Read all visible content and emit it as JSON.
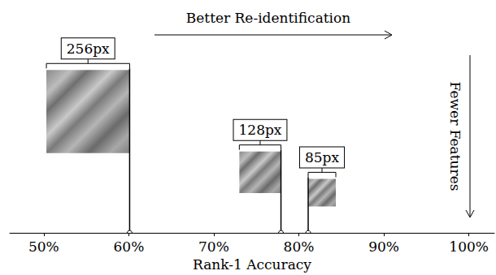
{
  "chart_data": {
    "type": "stem",
    "x_label": "Rank-1 Accuracy",
    "x": [
      60.1,
      77.9,
      81.1
    ],
    "labels": [
      "256px",
      "128px",
      "85px"
    ],
    "image_size": [
      256,
      128,
      85
    ],
    "xlim": [
      46,
      103
    ],
    "xticks": [
      {
        "value": 50,
        "label": "50%"
      },
      {
        "value": 60,
        "label": "60%"
      },
      {
        "value": 70,
        "label": "70%"
      },
      {
        "value": 80,
        "label": "80%"
      },
      {
        "value": 90,
        "label": "90%"
      },
      {
        "value": 100,
        "label": "100%"
      }
    ],
    "annotations": [
      "Better Re-identification",
      "Fewer Features"
    ],
    "tick_labels": "x",
    "grid": false
  }
}
